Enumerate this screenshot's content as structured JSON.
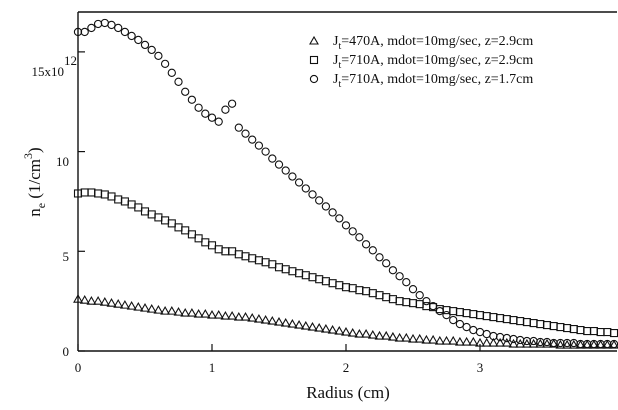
{
  "chart_data": {
    "type": "scatter",
    "xlabel": "Radius (cm)",
    "ylabel": "n_e (1/cm^3)",
    "y_multiplier_label": "x10^12",
    "xlim": [
      0,
      4
    ],
    "ylim": [
      0,
      17
    ],
    "x_ticks": [
      0,
      1,
      2,
      3
    ],
    "y_ticks": [
      0,
      5,
      10,
      15
    ],
    "x_tick_labels": [
      "0",
      "1",
      "2",
      "3"
    ],
    "y_tick_labels": [
      "0",
      "5",
      "10",
      "15x10"
    ],
    "y_top_tick_exponent": "12",
    "grid": false,
    "legend_position": "top-right",
    "series": [
      {
        "name": "J_t=470A, mdot=10mg/sec, z=2.9cm",
        "legend_main": "J",
        "legend_sub": "t",
        "legend_rest": "=470A, mdot=10mg/sec, z=2.9cm",
        "marker": "triangle",
        "x": [
          0,
          0.05,
          0.1,
          0.15,
          0.2,
          0.25,
          0.3,
          0.35,
          0.4,
          0.45,
          0.5,
          0.55,
          0.6,
          0.65,
          0.7,
          0.75,
          0.8,
          0.85,
          0.9,
          0.95,
          1.0,
          1.05,
          1.1,
          1.15,
          1.2,
          1.25,
          1.3,
          1.35,
          1.4,
          1.45,
          1.5,
          1.55,
          1.6,
          1.65,
          1.7,
          1.75,
          1.8,
          1.85,
          1.9,
          1.95,
          2.0,
          2.05,
          2.1,
          2.15,
          2.2,
          2.25,
          2.3,
          2.35,
          2.4,
          2.45,
          2.5,
          2.55,
          2.6,
          2.65,
          2.7,
          2.75,
          2.8,
          2.85,
          2.9,
          2.95,
          3.0,
          3.05,
          3.1,
          3.15,
          3.2,
          3.25,
          3.3,
          3.35,
          3.4,
          3.45,
          3.5,
          3.55,
          3.6,
          3.65,
          3.7,
          3.75,
          3.8,
          3.85,
          3.9,
          3.95,
          4.0
        ],
        "y": [
          2.6,
          2.55,
          2.5,
          2.5,
          2.45,
          2.4,
          2.35,
          2.3,
          2.25,
          2.2,
          2.15,
          2.1,
          2.05,
          2.0,
          2.0,
          1.95,
          1.9,
          1.9,
          1.85,
          1.85,
          1.8,
          1.8,
          1.75,
          1.75,
          1.7,
          1.7,
          1.65,
          1.6,
          1.55,
          1.5,
          1.45,
          1.4,
          1.35,
          1.3,
          1.25,
          1.2,
          1.15,
          1.1,
          1.05,
          1.0,
          0.95,
          0.9,
          0.85,
          0.85,
          0.8,
          0.75,
          0.75,
          0.7,
          0.65,
          0.65,
          0.6,
          0.6,
          0.55,
          0.55,
          0.5,
          0.5,
          0.5,
          0.45,
          0.45,
          0.45,
          0.4,
          0.4,
          0.4,
          0.4,
          0.4,
          0.35,
          0.35,
          0.35,
          0.35,
          0.35,
          0.35,
          0.35,
          0.3,
          0.3,
          0.3,
          0.3,
          0.3,
          0.3,
          0.3,
          0.3,
          0.3
        ]
      },
      {
        "name": "J_t=710A, mdot=10mg/sec, z=2.9cm",
        "legend_main": "J",
        "legend_sub": "t",
        "legend_rest": "=710A, mdot=10mg/sec, z=2.9cm",
        "marker": "square",
        "x": [
          0,
          0.05,
          0.1,
          0.15,
          0.2,
          0.25,
          0.3,
          0.35,
          0.4,
          0.45,
          0.5,
          0.55,
          0.6,
          0.65,
          0.7,
          0.75,
          0.8,
          0.85,
          0.9,
          0.95,
          1.0,
          1.05,
          1.1,
          1.15,
          1.2,
          1.25,
          1.3,
          1.35,
          1.4,
          1.45,
          1.5,
          1.55,
          1.6,
          1.65,
          1.7,
          1.75,
          1.8,
          1.85,
          1.9,
          1.95,
          2.0,
          2.05,
          2.1,
          2.15,
          2.2,
          2.25,
          2.3,
          2.35,
          2.4,
          2.45,
          2.5,
          2.55,
          2.6,
          2.65,
          2.7,
          2.75,
          2.8,
          2.85,
          2.9,
          2.95,
          3.0,
          3.05,
          3.1,
          3.15,
          3.2,
          3.25,
          3.3,
          3.35,
          3.4,
          3.45,
          3.5,
          3.55,
          3.6,
          3.65,
          3.7,
          3.75,
          3.8,
          3.85,
          3.9,
          3.95,
          4.0
        ],
        "y": [
          7.9,
          7.95,
          7.95,
          7.9,
          7.85,
          7.75,
          7.6,
          7.5,
          7.35,
          7.2,
          7.0,
          6.85,
          6.7,
          6.55,
          6.4,
          6.2,
          6.05,
          5.85,
          5.65,
          5.45,
          5.3,
          5.1,
          5.0,
          5.0,
          4.85,
          4.75,
          4.65,
          4.55,
          4.45,
          4.35,
          4.2,
          4.1,
          4.0,
          3.9,
          3.8,
          3.7,
          3.6,
          3.5,
          3.4,
          3.3,
          3.2,
          3.15,
          3.05,
          3.0,
          2.9,
          2.8,
          2.7,
          2.6,
          2.5,
          2.45,
          2.4,
          2.35,
          2.25,
          2.2,
          2.1,
          2.05,
          2.0,
          1.95,
          1.9,
          1.85,
          1.8,
          1.75,
          1.7,
          1.65,
          1.6,
          1.55,
          1.5,
          1.45,
          1.4,
          1.35,
          1.3,
          1.25,
          1.2,
          1.15,
          1.1,
          1.05,
          1.0,
          1.0,
          0.95,
          0.95,
          0.9
        ]
      },
      {
        "name": "J_t=710A, mdot=10mg/sec, z=1.7cm",
        "legend_main": "J",
        "legend_sub": "t",
        "legend_rest": "=710A, mdot=10mg/sec, z=1.7cm",
        "marker": "circle",
        "x": [
          0,
          0.05,
          0.1,
          0.15,
          0.2,
          0.25,
          0.3,
          0.35,
          0.4,
          0.45,
          0.5,
          0.55,
          0.6,
          0.65,
          0.7,
          0.75,
          0.8,
          0.85,
          0.9,
          0.95,
          1.0,
          1.05,
          1.1,
          1.15,
          1.2,
          1.25,
          1.3,
          1.35,
          1.4,
          1.45,
          1.5,
          1.55,
          1.6,
          1.65,
          1.7,
          1.75,
          1.8,
          1.85,
          1.9,
          1.95,
          2.0,
          2.05,
          2.1,
          2.15,
          2.2,
          2.25,
          2.3,
          2.35,
          2.4,
          2.45,
          2.5,
          2.55,
          2.6,
          2.65,
          2.7,
          2.75,
          2.8,
          2.85,
          2.9,
          2.95,
          3.0,
          3.05,
          3.1,
          3.15,
          3.2,
          3.25,
          3.3,
          3.35,
          3.4,
          3.45,
          3.5,
          3.55,
          3.6,
          3.65,
          3.7,
          3.75,
          3.8,
          3.85,
          3.9,
          3.95,
          4.0
        ],
        "y": [
          16.0,
          16.0,
          16.2,
          16.4,
          16.45,
          16.35,
          16.2,
          16.0,
          15.8,
          15.6,
          15.35,
          15.1,
          14.8,
          14.4,
          13.95,
          13.5,
          13.0,
          12.6,
          12.2,
          11.9,
          11.7,
          11.5,
          12.1,
          12.4,
          11.2,
          10.9,
          10.6,
          10.3,
          10.0,
          9.65,
          9.35,
          9.05,
          8.75,
          8.45,
          8.15,
          7.85,
          7.55,
          7.25,
          6.95,
          6.65,
          6.3,
          6.0,
          5.7,
          5.35,
          5.05,
          4.7,
          4.4,
          4.05,
          3.75,
          3.45,
          3.1,
          2.8,
          2.5,
          2.25,
          2.0,
          1.8,
          1.55,
          1.35,
          1.2,
          1.05,
          0.95,
          0.85,
          0.75,
          0.7,
          0.65,
          0.6,
          0.55,
          0.5,
          0.5,
          0.45,
          0.45,
          0.4,
          0.4,
          0.4,
          0.4,
          0.35,
          0.35,
          0.35,
          0.35,
          0.35,
          0.35
        ]
      }
    ]
  }
}
